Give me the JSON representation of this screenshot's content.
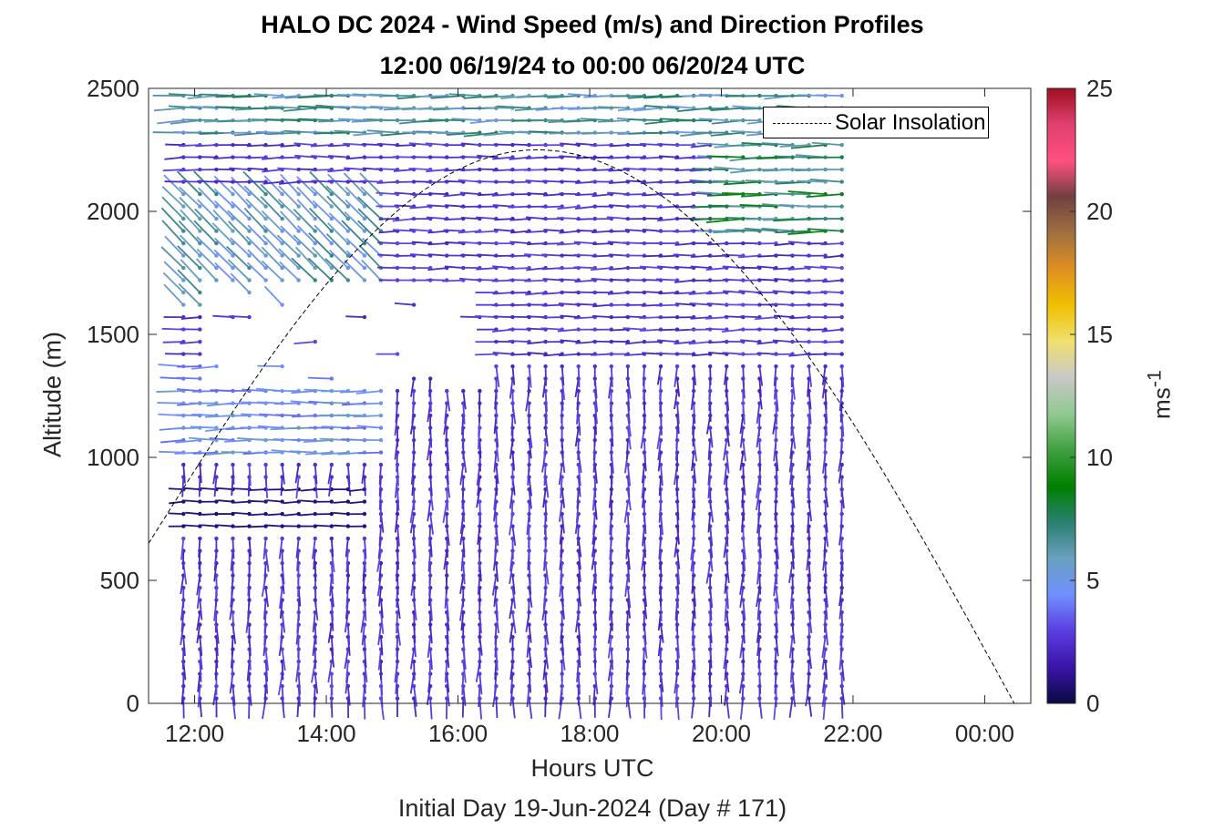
{
  "chart_data": {
    "type": "wind-barb profile",
    "title": "HALO DC 2024 - Wind Speed (m/s) and Direction Profiles",
    "subtitle": "12:00 06/19/24 to 00:00 06/20/24  UTC",
    "xlabel": "Hours UTC",
    "xlabel2": "Initial Day 19-Jun-2024 (Day # 171)",
    "ylabel": "Altitude (m)",
    "xlim_hours": [
      11.3,
      24.7
    ],
    "ylim": [
      0,
      2500
    ],
    "x_ticks": [
      "12:00",
      "14:00",
      "16:00",
      "18:00",
      "20:00",
      "22:00",
      "00:00"
    ],
    "x_tick_hours": [
      12,
      14,
      16,
      18,
      20,
      22,
      24
    ],
    "y_ticks": [
      0,
      500,
      1000,
      1500,
      2000,
      2500
    ],
    "legend": [
      {
        "label": "Solar Insolation",
        "style": "dashed",
        "color": "#000000"
      }
    ],
    "colorbar": {
      "label": "ms",
      "label_superscript": "-1",
      "range": [
        0,
        25
      ],
      "ticks": [
        0,
        5,
        10,
        15,
        20,
        25
      ],
      "colors": [
        "#0a0a40",
        "#3a14a8",
        "#5a3ce0",
        "#7090ff",
        "#6aa0c0",
        "#2a8070",
        "#008000",
        "#40a040",
        "#90c890",
        "#c8c8c8",
        "#f0e070",
        "#f0c000",
        "#e09020",
        "#a07040",
        "#704040",
        "#ff5080",
        "#e04070",
        "#a01020"
      ]
    },
    "profile_time_range_hours": [
      11.83,
      21.83
    ],
    "profile_interval_minutes": 15,
    "speed_regimes": [
      {
        "altitude_range": [
          0,
          700
        ],
        "speed_ms": 2.5,
        "direction": "from south"
      },
      {
        "altitude_range": [
          700,
          900
        ],
        "speed_ms": 0.8,
        "direction": "from west",
        "time_range_hours": [
          11.8,
          14.8
        ]
      },
      {
        "altitude_range": [
          1000,
          1400
        ],
        "speed_ms": 4.5,
        "direction": "from west",
        "time_range_hours": [
          11.8,
          15.0
        ]
      },
      {
        "altitude_range": [
          1400,
          2300
        ],
        "speed_ms": 2.5,
        "direction": "from west"
      },
      {
        "altitude_range": [
          1600,
          2100
        ],
        "speed_ms": 5.5,
        "direction": "from northwest",
        "time_range_hours": [
          11.8,
          15.0
        ]
      },
      {
        "altitude_range": [
          1900,
          2300
        ],
        "speed_ms": 7.0,
        "direction": "from west",
        "time_range_hours": [
          20.0,
          22.0
        ]
      },
      {
        "altitude_range": [
          2300,
          2500
        ],
        "speed_ms": 6.0,
        "direction": "from west"
      }
    ],
    "solar_insolation_curve": {
      "start_hour": 11.3,
      "peak_hour": 17.2,
      "peak_altitude": 2250,
      "end_hour": 24.45
    }
  }
}
